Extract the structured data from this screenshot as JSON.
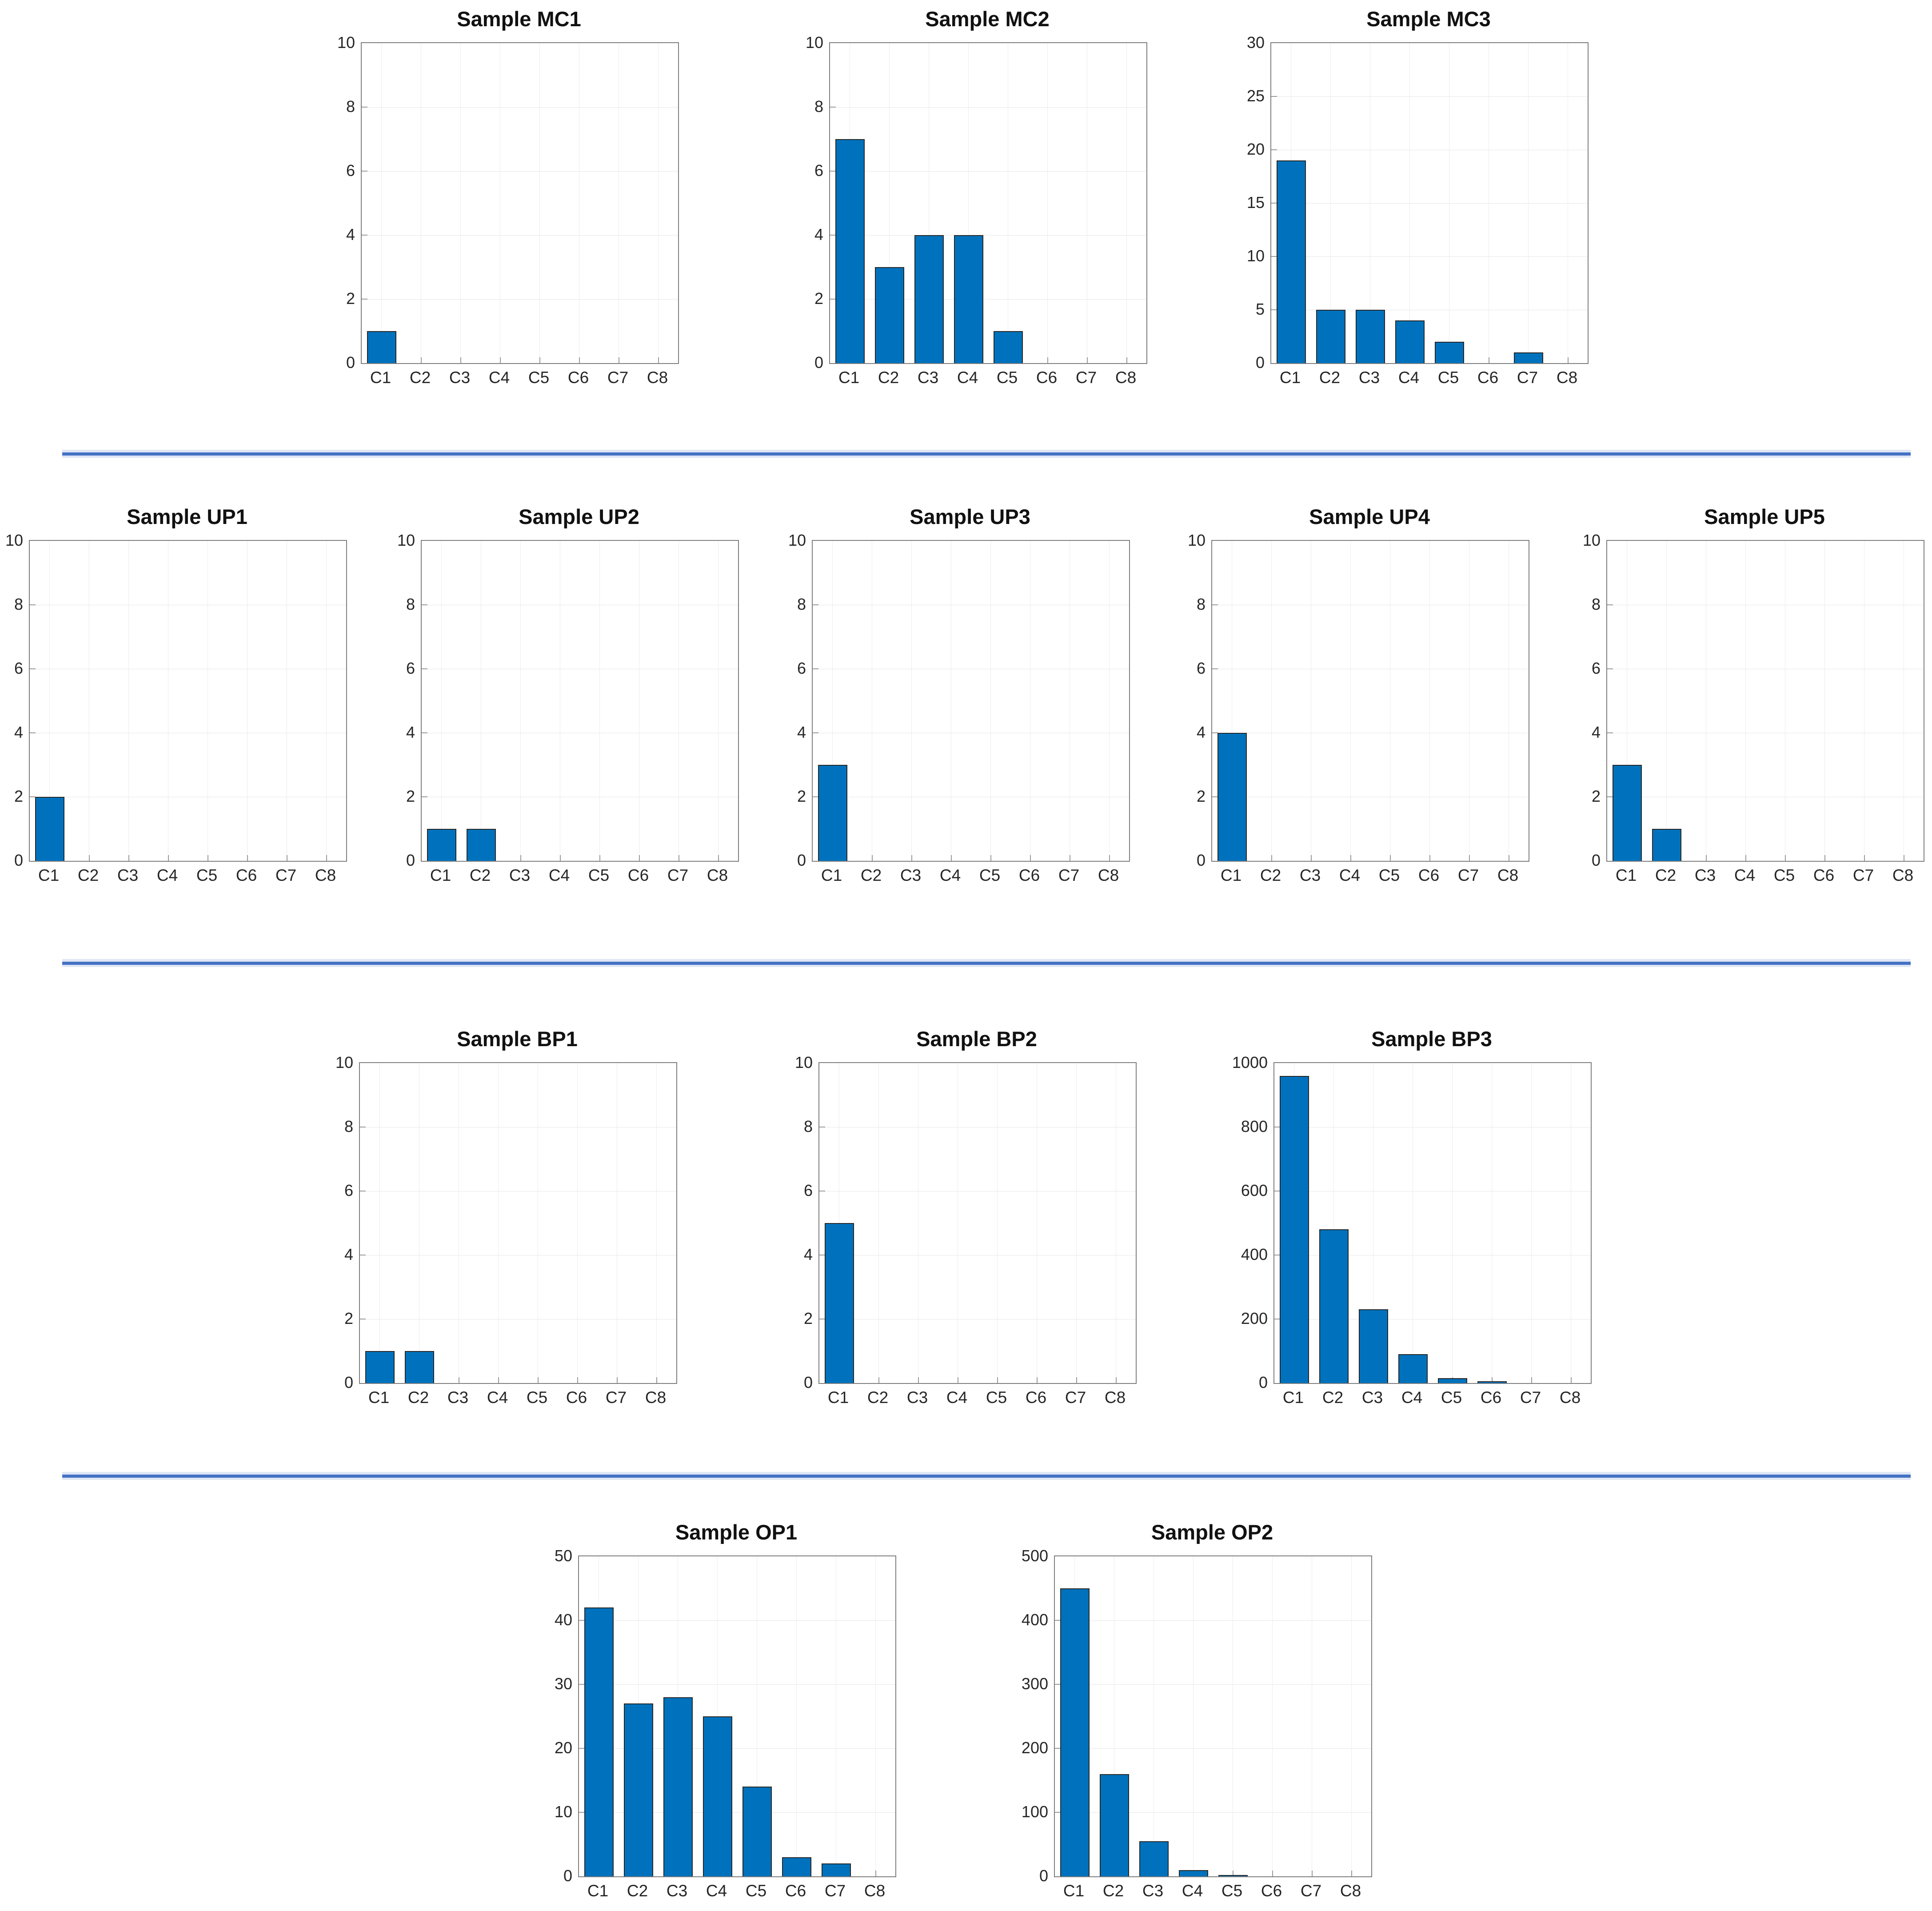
{
  "figure": {
    "background": "#ffffff",
    "bar_color": "#0072BD",
    "bar_edge_color": "#262626",
    "divider_color": "#4472C4",
    "rows": [
      [
        "MC1",
        "MC2",
        "MC3"
      ],
      [
        "UP1",
        "UP2",
        "UP3",
        "UP4",
        "UP5"
      ],
      [
        "BP1",
        "BP2",
        "BP3"
      ],
      [
        "OP1",
        "OP2"
      ]
    ]
  },
  "chart_data": [
    {
      "type": "bar",
      "title": "Sample MC1",
      "categories": [
        "C1",
        "C2",
        "C3",
        "C4",
        "C5",
        "C6",
        "C7",
        "C8"
      ],
      "values": [
        1,
        0,
        0,
        0,
        0,
        0,
        0,
        0
      ],
      "ylim": [
        0,
        10
      ],
      "yticks": [
        0,
        2,
        4,
        6,
        8,
        10
      ],
      "grid": true,
      "xlabel": "",
      "ylabel": ""
    },
    {
      "type": "bar",
      "title": "Sample MC2",
      "categories": [
        "C1",
        "C2",
        "C3",
        "C4",
        "C5",
        "C6",
        "C7",
        "C8"
      ],
      "values": [
        7,
        3,
        4,
        4,
        1,
        0,
        0,
        0
      ],
      "ylim": [
        0,
        10
      ],
      "yticks": [
        0,
        2,
        4,
        6,
        8,
        10
      ],
      "grid": true,
      "xlabel": "",
      "ylabel": ""
    },
    {
      "type": "bar",
      "title": "Sample MC3",
      "categories": [
        "C1",
        "C2",
        "C3",
        "C4",
        "C5",
        "C6",
        "C7",
        "C8"
      ],
      "values": [
        19,
        5,
        5,
        4,
        2,
        0,
        1,
        0
      ],
      "ylim": [
        0,
        30
      ],
      "yticks": [
        0,
        5,
        10,
        15,
        20,
        25,
        30
      ],
      "grid": true,
      "xlabel": "",
      "ylabel": ""
    },
    {
      "type": "bar",
      "title": "Sample UP1",
      "categories": [
        "C1",
        "C2",
        "C3",
        "C4",
        "C5",
        "C6",
        "C7",
        "C8"
      ],
      "values": [
        2,
        0,
        0,
        0,
        0,
        0,
        0,
        0
      ],
      "ylim": [
        0,
        10
      ],
      "yticks": [
        0,
        2,
        4,
        6,
        8,
        10
      ],
      "grid": true,
      "xlabel": "",
      "ylabel": ""
    },
    {
      "type": "bar",
      "title": "Sample UP2",
      "categories": [
        "C1",
        "C2",
        "C3",
        "C4",
        "C5",
        "C6",
        "C7",
        "C8"
      ],
      "values": [
        1,
        1,
        0,
        0,
        0,
        0,
        0,
        0
      ],
      "ylim": [
        0,
        10
      ],
      "yticks": [
        0,
        2,
        4,
        6,
        8,
        10
      ],
      "grid": true,
      "xlabel": "",
      "ylabel": ""
    },
    {
      "type": "bar",
      "title": "Sample UP3",
      "categories": [
        "C1",
        "C2",
        "C3",
        "C4",
        "C5",
        "C6",
        "C7",
        "C8"
      ],
      "values": [
        3,
        0,
        0,
        0,
        0,
        0,
        0,
        0
      ],
      "ylim": [
        0,
        10
      ],
      "yticks": [
        0,
        2,
        4,
        6,
        8,
        10
      ],
      "grid": true,
      "xlabel": "",
      "ylabel": ""
    },
    {
      "type": "bar",
      "title": "Sample UP4",
      "categories": [
        "C1",
        "C2",
        "C3",
        "C4",
        "C5",
        "C6",
        "C7",
        "C8"
      ],
      "values": [
        4,
        0,
        0,
        0,
        0,
        0,
        0,
        0
      ],
      "ylim": [
        0,
        10
      ],
      "yticks": [
        0,
        2,
        4,
        6,
        8,
        10
      ],
      "grid": true,
      "xlabel": "",
      "ylabel": ""
    },
    {
      "type": "bar",
      "title": "Sample UP5",
      "categories": [
        "C1",
        "C2",
        "C3",
        "C4",
        "C5",
        "C6",
        "C7",
        "C8"
      ],
      "values": [
        3,
        1,
        0,
        0,
        0,
        0,
        0,
        0
      ],
      "ylim": [
        0,
        10
      ],
      "yticks": [
        0,
        2,
        4,
        6,
        8,
        10
      ],
      "grid": true,
      "xlabel": "",
      "ylabel": ""
    },
    {
      "type": "bar",
      "title": "Sample BP1",
      "categories": [
        "C1",
        "C2",
        "C3",
        "C4",
        "C5",
        "C6",
        "C7",
        "C8"
      ],
      "values": [
        1,
        1,
        0,
        0,
        0,
        0,
        0,
        0
      ],
      "ylim": [
        0,
        10
      ],
      "yticks": [
        0,
        2,
        4,
        6,
        8,
        10
      ],
      "grid": true,
      "xlabel": "",
      "ylabel": ""
    },
    {
      "type": "bar",
      "title": "Sample BP2",
      "categories": [
        "C1",
        "C2",
        "C3",
        "C4",
        "C5",
        "C6",
        "C7",
        "C8"
      ],
      "values": [
        5,
        0,
        0,
        0,
        0,
        0,
        0,
        0
      ],
      "ylim": [
        0,
        10
      ],
      "yticks": [
        0,
        2,
        4,
        6,
        8,
        10
      ],
      "grid": true,
      "xlabel": "",
      "ylabel": ""
    },
    {
      "type": "bar",
      "title": "Sample BP3",
      "categories": [
        "C1",
        "C2",
        "C3",
        "C4",
        "C5",
        "C6",
        "C7",
        "C8"
      ],
      "values": [
        960,
        480,
        230,
        90,
        15,
        5,
        0,
        0
      ],
      "ylim": [
        0,
        1000
      ],
      "yticks": [
        0,
        200,
        400,
        600,
        800,
        1000
      ],
      "grid": true,
      "xlabel": "",
      "ylabel": ""
    },
    {
      "type": "bar",
      "title": "Sample OP1",
      "categories": [
        "C1",
        "C2",
        "C3",
        "C4",
        "C5",
        "C6",
        "C7",
        "C8"
      ],
      "values": [
        42,
        27,
        28,
        25,
        14,
        3,
        2,
        0
      ],
      "ylim": [
        0,
        50
      ],
      "yticks": [
        0,
        10,
        20,
        30,
        40,
        50
      ],
      "grid": true,
      "xlabel": "",
      "ylabel": ""
    },
    {
      "type": "bar",
      "title": "Sample OP2",
      "categories": [
        "C1",
        "C2",
        "C3",
        "C4",
        "C5",
        "C6",
        "C7",
        "C8"
      ],
      "values": [
        450,
        160,
        55,
        10,
        2,
        0,
        0,
        0
      ],
      "ylim": [
        0,
        500
      ],
      "yticks": [
        0,
        100,
        200,
        300,
        400,
        500
      ],
      "grid": true,
      "xlabel": "",
      "ylabel": ""
    }
  ]
}
